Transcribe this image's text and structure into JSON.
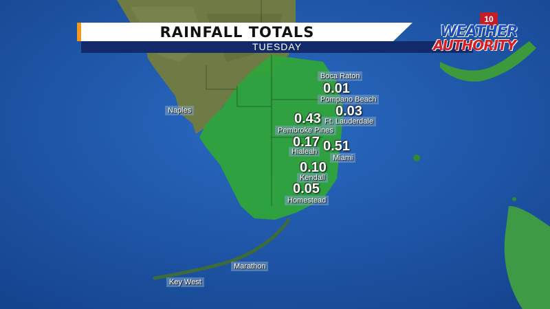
{
  "header": {
    "title": "RAINFALL TOTALS",
    "day": "TUESDAY"
  },
  "logo": {
    "badge": "10",
    "line1": "WEATHER",
    "line2": "AUTHORITY"
  },
  "cities": {
    "naples": "Naples",
    "marathon": "Marathon",
    "key_west": "Key West"
  },
  "stations": {
    "boca_raton": {
      "name": "Boca Raton",
      "value": "0.01"
    },
    "pompano_beach": {
      "name": "Pompano Beach",
      "value": "0.03"
    },
    "ft_lauderdale": {
      "name": "Ft. Lauderdale",
      "value": "0.43"
    },
    "pembroke_pines": {
      "name": "Pembroke Pines",
      "value": "0.17"
    },
    "hialeah": {
      "name": "Hialeah",
      "value": "0.51"
    },
    "miami": {
      "name": "Miami",
      "value": "0.10"
    },
    "kendall": {
      "name": "Kendall",
      "value": "0.05"
    },
    "homestead": {
      "name": "Homestead"
    }
  },
  "colors": {
    "ocean": "#1d54a8",
    "land": "#6b7a3e",
    "rain": "#2fa43a",
    "accent": "#f39a1e"
  }
}
